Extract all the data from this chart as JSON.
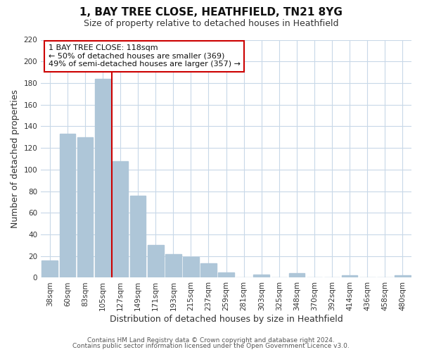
{
  "title": "1, BAY TREE CLOSE, HEATHFIELD, TN21 8YG",
  "subtitle": "Size of property relative to detached houses in Heathfield",
  "xlabel": "Distribution of detached houses by size in Heathfield",
  "ylabel": "Number of detached properties",
  "bar_labels": [
    "38sqm",
    "60sqm",
    "83sqm",
    "105sqm",
    "127sqm",
    "149sqm",
    "171sqm",
    "193sqm",
    "215sqm",
    "237sqm",
    "259sqm",
    "281sqm",
    "303sqm",
    "325sqm",
    "348sqm",
    "370sqm",
    "392sqm",
    "414sqm",
    "436sqm",
    "458sqm",
    "480sqm"
  ],
  "bar_values": [
    16,
    133,
    130,
    184,
    108,
    76,
    30,
    22,
    19,
    13,
    5,
    0,
    3,
    0,
    4,
    0,
    0,
    2,
    0,
    0,
    2
  ],
  "bar_color": "#aec6d8",
  "bar_edge_color": "#aec6d8",
  "vline_x_idx": 3.5,
  "vline_color": "#cc0000",
  "annotation_title": "1 BAY TREE CLOSE: 118sqm",
  "annotation_line1": "← 50% of detached houses are smaller (369)",
  "annotation_line2": "49% of semi-detached houses are larger (357) →",
  "ylim": [
    0,
    220
  ],
  "yticks": [
    0,
    20,
    40,
    60,
    80,
    100,
    120,
    140,
    160,
    180,
    200,
    220
  ],
  "footnote1": "Contains HM Land Registry data © Crown copyright and database right 2024.",
  "footnote2": "Contains public sector information licensed under the Open Government Licence v3.0.",
  "background_color": "#ffffff",
  "grid_color": "#c8d8e8",
  "title_fontsize": 11,
  "subtitle_fontsize": 9,
  "axis_label_fontsize": 9,
  "tick_fontsize": 7.5,
  "footnote_fontsize": 6.5,
  "ann_fontsize": 8
}
